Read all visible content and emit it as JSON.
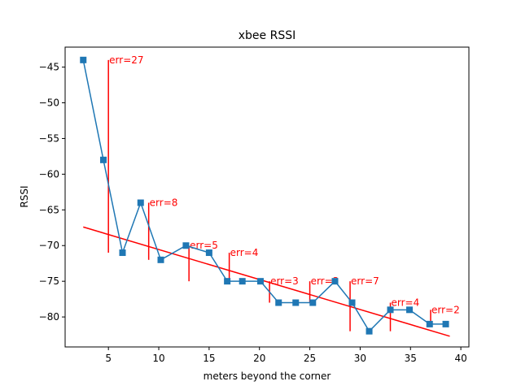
{
  "chart_data": {
    "type": "line",
    "title": "xbee RSSI",
    "xlabel": "meters beyond the corner",
    "ylabel": "RSSI",
    "xlim": [
      0.7,
      40.8
    ],
    "ylim": [
      -84.2,
      -42.2
    ],
    "xticks": [
      5,
      10,
      15,
      20,
      25,
      30,
      35,
      40
    ],
    "yticks": [
      -45,
      -50,
      -55,
      -60,
      -65,
      -70,
      -75,
      -80
    ],
    "grid": false,
    "series": [
      {
        "marker": "square",
        "color": "#1f77b4",
        "x": [
          2.5,
          4.5,
          6.4,
          8.2,
          10.2,
          12.7,
          15.0,
          16.8,
          18.3,
          20.1,
          21.9,
          23.6,
          25.3,
          27.5,
          29.2,
          30.9,
          33.0,
          34.9,
          36.9,
          38.5
        ],
        "y": [
          -44,
          -58,
          -71,
          -64,
          -72,
          -70,
          -71,
          -75,
          -75,
          -75,
          -78,
          -78,
          -78,
          -75,
          -78,
          -82,
          -79,
          -79,
          -81,
          -81
        ]
      }
    ],
    "fit_line": {
      "color": "#ff0000",
      "x": [
        2.5,
        38.9
      ],
      "y": [
        -67.4,
        -82.7
      ]
    },
    "error_bars": {
      "color": "#ff0000",
      "items": [
        {
          "x": 5,
          "y_top": -44,
          "y_bottom": -71,
          "label": "err=27"
        },
        {
          "x": 9,
          "y_top": -64,
          "y_bottom": -72,
          "label": "err=8"
        },
        {
          "x": 13,
          "y_top": -70,
          "y_bottom": -75,
          "label": "err=5"
        },
        {
          "x": 17,
          "y_top": -71,
          "y_bottom": -75,
          "label": "err=4"
        },
        {
          "x": 21,
          "y_top": -75,
          "y_bottom": -78,
          "label": "err=3"
        },
        {
          "x": 25,
          "y_top": -75,
          "y_bottom": -78,
          "label": "err=3"
        },
        {
          "x": 29,
          "y_top": -75,
          "y_bottom": -82,
          "label": "err=7"
        },
        {
          "x": 33,
          "y_top": -78,
          "y_bottom": -82,
          "label": "err=4"
        },
        {
          "x": 37,
          "y_top": -79,
          "y_bottom": -81,
          "label": "err=2"
        }
      ]
    }
  }
}
